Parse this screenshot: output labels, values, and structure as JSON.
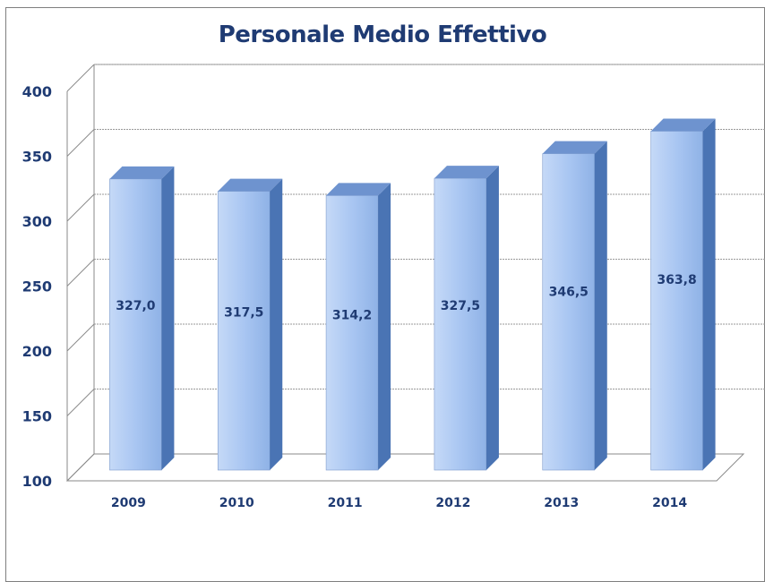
{
  "chart_data": {
    "type": "bar",
    "title": "Personale Medio Effettivo",
    "categories": [
      "2009",
      "2010",
      "2011",
      "2012",
      "2013",
      "2014"
    ],
    "values": [
      327.0,
      317.5,
      314.2,
      327.5,
      346.5,
      363.8
    ],
    "value_labels": [
      "327,0",
      "317,5",
      "314,2",
      "327,5",
      "346,5",
      "363,8"
    ],
    "y_ticks": [
      "100",
      "150",
      "200",
      "250",
      "300",
      "350",
      "400"
    ],
    "ylim": [
      100,
      400
    ],
    "xlabel": "",
    "ylabel": "",
    "grid": true,
    "legend": "none",
    "bar_style": "3d",
    "colors": {
      "bar_front": "#a9c6f2",
      "bar_side": "#4a74b4",
      "bar_top": "#6e93cf",
      "text": "#1f3b73"
    }
  }
}
